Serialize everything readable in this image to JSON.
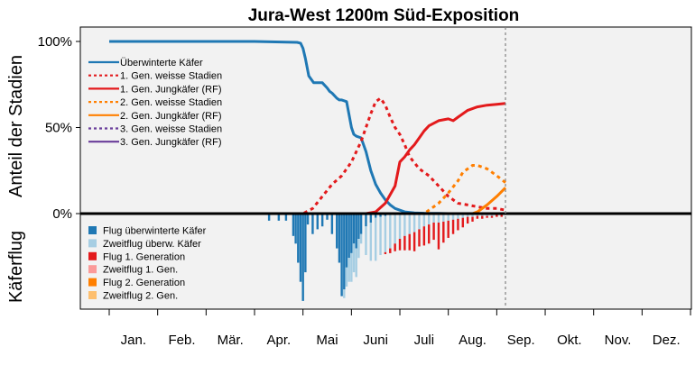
{
  "chart_data": {
    "type": "line",
    "title": "Jura-West 1200m Süd-Exposition",
    "ylabel_upper": "Anteil der Stadien",
    "ylabel_lower": "Käferflug",
    "y_ticks": [
      "100%",
      "50%",
      "0%"
    ],
    "ylim": [
      0,
      1
    ],
    "x_unit": "month",
    "xlim": [
      0,
      12
    ],
    "months": [
      "Jan.",
      "Feb.",
      "Mär.",
      "Apr.",
      "Mai",
      "Juni",
      "Juli",
      "Aug.",
      "Sep.",
      "Okt.",
      "Nov.",
      "Dez."
    ],
    "current_date_marker": 8.18,
    "grid": false,
    "legend_position": "top-left",
    "series": [
      {
        "name": "Überwinterte Käfer",
        "color": "#1f78b4",
        "dash": "solid",
        "x": [
          0.0,
          1.0,
          2.0,
          3.0,
          3.88,
          3.95,
          4.0,
          4.05,
          4.12,
          4.22,
          4.3,
          4.4,
          4.5,
          4.55,
          4.6,
          4.7,
          4.75,
          4.8,
          4.9,
          5.0,
          5.05,
          5.1,
          5.2,
          5.3,
          5.4,
          5.5,
          5.6,
          5.7,
          5.8,
          5.9,
          6.0,
          6.1,
          6.3,
          6.5,
          6.8,
          7.0,
          8.18
        ],
        "y": [
          1.0,
          1.0,
          1.0,
          1.0,
          0.995,
          0.99,
          0.96,
          0.9,
          0.8,
          0.76,
          0.76,
          0.76,
          0.73,
          0.71,
          0.7,
          0.67,
          0.66,
          0.66,
          0.65,
          0.5,
          0.46,
          0.45,
          0.44,
          0.36,
          0.25,
          0.17,
          0.12,
          0.08,
          0.05,
          0.03,
          0.02,
          0.01,
          0.004,
          0.002,
          0.001,
          0.0,
          0.0
        ]
      },
      {
        "name": "1. Gen. weisse Stadien",
        "color": "#e31a1c",
        "dash": "dotted",
        "x": [
          0.0,
          4.0,
          4.2,
          4.4,
          4.6,
          4.8,
          5.0,
          5.2,
          5.4,
          5.5,
          5.6,
          5.7,
          5.8,
          5.9,
          6.0,
          6.1,
          6.2,
          6.4,
          6.6,
          6.8,
          7.0,
          7.2,
          7.4,
          7.6,
          7.8,
          8.0,
          8.18
        ],
        "y": [
          0.0,
          0.0,
          0.03,
          0.1,
          0.17,
          0.22,
          0.3,
          0.42,
          0.58,
          0.65,
          0.67,
          0.63,
          0.56,
          0.5,
          0.46,
          0.4,
          0.33,
          0.26,
          0.22,
          0.16,
          0.1,
          0.06,
          0.05,
          0.04,
          0.03,
          0.03,
          0.02
        ]
      },
      {
        "name": "1. Gen. Jungkäfer (RF)",
        "color": "#e31a1c",
        "dash": "solid",
        "x": [
          0.0,
          5.3,
          5.5,
          5.7,
          5.9,
          6.0,
          6.1,
          6.2,
          6.3,
          6.4,
          6.5,
          6.6,
          6.8,
          7.0,
          7.1,
          7.2,
          7.4,
          7.6,
          7.8,
          8.0,
          8.18
        ],
        "y": [
          0.0,
          0.0,
          0.01,
          0.06,
          0.16,
          0.3,
          0.33,
          0.37,
          0.4,
          0.44,
          0.48,
          0.51,
          0.54,
          0.55,
          0.54,
          0.56,
          0.6,
          0.62,
          0.63,
          0.635,
          0.64
        ]
      },
      {
        "name": "2. Gen. weisse Stadien",
        "color": "#ff7f00",
        "dash": "dotted",
        "x": [
          0.0,
          6.5,
          6.6,
          6.8,
          7.0,
          7.2,
          7.3,
          7.5,
          7.6,
          7.8,
          8.0,
          8.18
        ],
        "y": [
          0.0,
          0.0,
          0.02,
          0.06,
          0.12,
          0.19,
          0.24,
          0.28,
          0.28,
          0.26,
          0.22,
          0.18
        ]
      },
      {
        "name": "2. Gen. Jungkäfer (RF)",
        "color": "#ff7f00",
        "dash": "solid",
        "x": [
          0.0,
          7.5,
          7.6,
          7.8,
          8.0,
          8.18
        ],
        "y": [
          0.0,
          0.0,
          0.01,
          0.05,
          0.1,
          0.15
        ]
      },
      {
        "name": "3. Gen. weisse Stadien",
        "color": "#6a3d9a",
        "dash": "dotted",
        "x": [
          0.0,
          8.18
        ],
        "y": [
          0.0,
          0.0
        ]
      },
      {
        "name": "3. Gen. Jungkäfer (RF)",
        "color": "#6a3d9a",
        "dash": "solid",
        "x": [
          0.0,
          8.18
        ],
        "y": [
          0.0,
          0.0
        ]
      }
    ],
    "flight": {
      "legend": [
        {
          "name": "Flug überwinterte Käfer",
          "color": "#1f78b4"
        },
        {
          "name": "Zweitflug überw. Käfer",
          "color": "#a6cee3"
        },
        {
          "name": "Flug 1. Generation",
          "color": "#e31a1c"
        },
        {
          "name": "Zweitflug 1. Gen.",
          "color": "#fb9a99"
        },
        {
          "name": "Flug 2. Generation",
          "color": "#ff7f00"
        },
        {
          "name": "Zweitflug 2. Gen.",
          "color": "#fdbf6f"
        }
      ],
      "bars": [
        {
          "x": 3.3,
          "layers": [
            0.06
          ]
        },
        {
          "x": 3.5,
          "layers": [
            0.06
          ]
        },
        {
          "x": 3.65,
          "layers": [
            0.06
          ]
        },
        {
          "x": 3.8,
          "layers": [
            0.22
          ]
        },
        {
          "x": 3.85,
          "layers": [
            0.3
          ]
        },
        {
          "x": 3.9,
          "layers": [
            0.5
          ]
        },
        {
          "x": 3.95,
          "layers": [
            0.7
          ]
        },
        {
          "x": 4.0,
          "layers": [
            0.9
          ]
        },
        {
          "x": 4.05,
          "layers": [
            0.6
          ]
        },
        {
          "x": 4.1,
          "layers": [
            0.1
          ]
        },
        {
          "x": 4.2,
          "layers": [
            0.2
          ]
        },
        {
          "x": 4.3,
          "layers": [
            0.15
          ]
        },
        {
          "x": 4.4,
          "layers": [
            0.12
          ]
        },
        {
          "x": 4.5,
          "layers": [
            0.05
          ]
        },
        {
          "x": 4.6,
          "layers": [
            0.2
          ]
        },
        {
          "x": 4.7,
          "layers": [
            0.35
          ]
        },
        {
          "x": 4.75,
          "layers": [
            0.5
          ]
        },
        {
          "x": 4.8,
          "layers": [
            0.85
          ]
        },
        {
          "x": 4.85,
          "layers": [
            0.78,
            0.09
          ]
        },
        {
          "x": 4.9,
          "layers": [
            0.55,
            0.2
          ]
        },
        {
          "x": 4.95,
          "layers": [
            0.45,
            0.25
          ]
        },
        {
          "x": 5.0,
          "layers": [
            0.4,
            0.3
          ]
        },
        {
          "x": 5.05,
          "layers": [
            0.3,
            0.3
          ]
        },
        {
          "x": 5.1,
          "layers": [
            0.35,
            0.3
          ]
        },
        {
          "x": 5.15,
          "layers": [
            0.25,
            0.2
          ]
        },
        {
          "x": 5.2,
          "layers": [
            0.2,
            0.1
          ]
        },
        {
          "x": 5.3,
          "layers": [
            0.12,
            0.3
          ]
        },
        {
          "x": 5.4,
          "layers": [
            0.08,
            0.4
          ]
        },
        {
          "x": 5.5,
          "layers": [
            0.03,
            0.45
          ]
        },
        {
          "x": 5.6,
          "layers": [
            0.02,
            0.4
          ]
        },
        {
          "x": 5.7,
          "layers": [
            0.01,
            0.38,
            0.02
          ]
        },
        {
          "x": 5.8,
          "layers": [
            0.0,
            0.35,
            0.05
          ]
        },
        {
          "x": 5.9,
          "layers": [
            0.0,
            0.3,
            0.08
          ]
        },
        {
          "x": 6.0,
          "layers": [
            0.0,
            0.25,
            0.12
          ]
        },
        {
          "x": 6.1,
          "layers": [
            0.0,
            0.22,
            0.15
          ]
        },
        {
          "x": 6.2,
          "layers": [
            0.0,
            0.2,
            0.17
          ]
        },
        {
          "x": 6.3,
          "layers": [
            0.0,
            0.18,
            0.2
          ]
        },
        {
          "x": 6.4,
          "layers": [
            0.0,
            0.15,
            0.18
          ]
        },
        {
          "x": 6.5,
          "layers": [
            0.0,
            0.12,
            0.2
          ]
        },
        {
          "x": 6.6,
          "layers": [
            0.0,
            0.1,
            0.2
          ]
        },
        {
          "x": 6.7,
          "layers": [
            0.0,
            0.08,
            0.18
          ]
        },
        {
          "x": 6.8,
          "layers": [
            0.0,
            0.08,
            0.28
          ]
        },
        {
          "x": 6.9,
          "layers": [
            0.0,
            0.07,
            0.22
          ]
        },
        {
          "x": 7.0,
          "layers": [
            0.0,
            0.06,
            0.18
          ]
        },
        {
          "x": 7.1,
          "layers": [
            0.0,
            0.05,
            0.15
          ]
        },
        {
          "x": 7.2,
          "layers": [
            0.0,
            0.04,
            0.12
          ]
        },
        {
          "x": 7.3,
          "layers": [
            0.0,
            0.03,
            0.1
          ]
        },
        {
          "x": 7.4,
          "layers": [
            0.0,
            0.02,
            0.07
          ]
        },
        {
          "x": 7.5,
          "layers": [
            0.0,
            0.02,
            0.05
          ]
        },
        {
          "x": 7.6,
          "layers": [
            0.0,
            0.01,
            0.03
          ]
        },
        {
          "x": 7.7,
          "layers": [
            0.0,
            0.01,
            0.03
          ]
        },
        {
          "x": 7.8,
          "layers": [
            0.0,
            0.01,
            0.02
          ]
        },
        {
          "x": 7.9,
          "layers": [
            0.0,
            0.01,
            0.02
          ]
        },
        {
          "x": 8.0,
          "layers": [
            0.0,
            0.0,
            0.02
          ]
        },
        {
          "x": 8.1,
          "layers": [
            0.0,
            0.0,
            0.02
          ]
        }
      ]
    }
  }
}
